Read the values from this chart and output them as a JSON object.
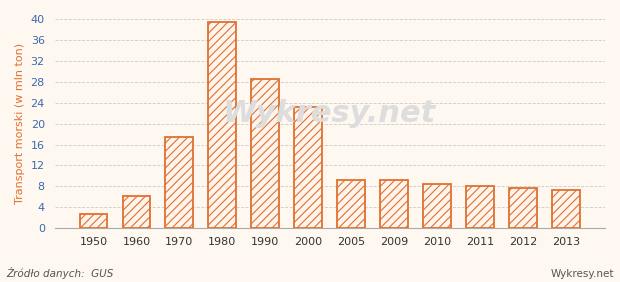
{
  "categories": [
    "1950",
    "1960",
    "1970",
    "1980",
    "1990",
    "2000",
    "2005",
    "2009",
    "2010",
    "2011",
    "2012",
    "2013"
  ],
  "values": [
    2.8,
    6.2,
    17.5,
    39.5,
    28.5,
    23.2,
    9.3,
    9.2,
    8.5,
    8.1,
    7.7,
    7.3
  ],
  "bar_facecolor": "#fff5ec",
  "bar_edge_color": "#e07030",
  "hatch": "////",
  "background_color": "#fff8f0",
  "plot_bg_color": "#fff8f0",
  "ylabel": "Transport morski (w mln ton)",
  "ylabel_color": "#e07030",
  "ytick_color": "#3a6ab0",
  "xtick_color": "#333333",
  "source_text": "Źródło danych:  GUS",
  "watermark_text": "Wykresy.net",
  "ylim": [
    0,
    40
  ],
  "yticks": [
    0,
    4,
    8,
    12,
    16,
    20,
    24,
    28,
    32,
    36,
    40
  ],
  "grid_color": "#cccccc",
  "source_color": "#555555",
  "watermark_color": "#cccccc",
  "watermark_plot_color": "#dddddd"
}
